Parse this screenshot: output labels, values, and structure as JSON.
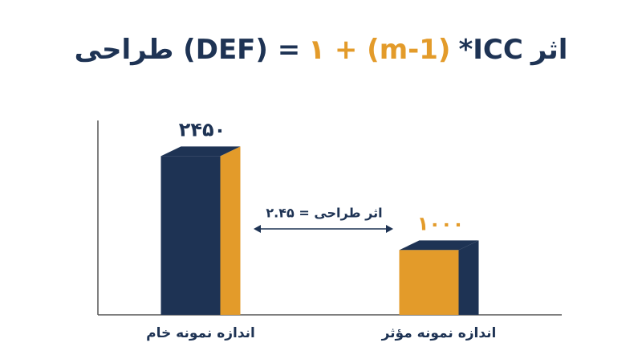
{
  "chart_data": {
    "type": "bar3d",
    "title_parts": [
      {
        "text": "طراحی (DEF) =",
        "color": "#1e3354"
      },
      {
        "text": "۱ + (m-1)",
        "color": "#e39b2a"
      },
      {
        "text": "*ICC",
        "color": "#1e3354"
      },
      {
        "text": "اثر",
        "color": "#1e3354"
      }
    ],
    "categories": [
      "اندازه نمونه خام",
      "اندازه نمونه مؤثر"
    ],
    "values": [
      2450,
      1000
    ],
    "value_labels": [
      "۲۴۵۰",
      "۱۰۰۰"
    ],
    "colors": [
      "#1e3354",
      "#e39b2a"
    ],
    "ylim": [
      0,
      3000
    ],
    "annotation": "اثر طراحی = ۲.۴۵"
  }
}
